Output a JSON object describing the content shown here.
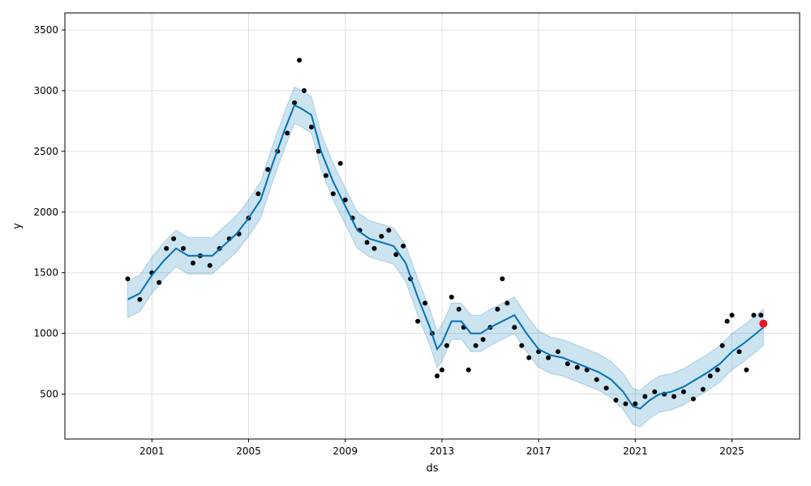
{
  "chart_data": {
    "type": "scatter",
    "title": "",
    "xlabel": "ds",
    "ylabel": "y",
    "xlim": [
      1997.4,
      2027.8
    ],
    "ylim": [
      130,
      3640
    ],
    "grid": true,
    "x_ticks": [
      2001,
      2005,
      2009,
      2013,
      2017,
      2021,
      2025
    ],
    "y_ticks": [
      500,
      1000,
      1500,
      2000,
      2500,
      3000,
      3500
    ],
    "colors": {
      "observed": "#000000",
      "forecast_line": "#0072B2",
      "uncertainty_band": "#0072B2",
      "highlight": "#e8191e",
      "grid": "#e0e0e0"
    },
    "series": [
      {
        "kind": "observed",
        "x": [
          2000.0,
          2000.5,
          2001.0,
          2001.3,
          2001.6,
          2001.9,
          2002.3,
          2002.7,
          2003.0,
          2003.4,
          2003.8,
          2004.2,
          2004.6,
          2005.0,
          2005.4,
          2005.8,
          2006.2,
          2006.6,
          2006.9,
          2007.1,
          2007.3,
          2007.6,
          2007.9,
          2008.2,
          2008.5,
          2008.8,
          2009.0,
          2009.3,
          2009.6,
          2009.9,
          2010.2,
          2010.5,
          2010.8,
          2011.1,
          2011.4,
          2011.7,
          2012.0,
          2012.3,
          2012.6,
          2012.8,
          2013.0,
          2013.2,
          2013.4,
          2013.7,
          2013.9,
          2014.1,
          2014.4,
          2014.7,
          2015.0,
          2015.3,
          2015.5,
          2015.7,
          2016.0,
          2016.3,
          2016.6,
          2017.0,
          2017.4,
          2017.8,
          2018.2,
          2018.6,
          2019.0,
          2019.4,
          2019.8,
          2020.2,
          2020.6,
          2021.0,
          2021.4,
          2021.8,
          2022.2,
          2022.6,
          2023.0,
          2023.4,
          2023.8,
          2024.1,
          2024.4,
          2024.6,
          2024.8,
          2025.0,
          2025.3,
          2025.6,
          2025.9,
          2026.2
        ],
        "y": [
          1450,
          1280,
          1500,
          1420,
          1700,
          1780,
          1700,
          1580,
          1640,
          1560,
          1700,
          1780,
          1820,
          1950,
          2150,
          2350,
          2500,
          2650,
          2900,
          3250,
          3000,
          2700,
          2500,
          2300,
          2150,
          2400,
          2100,
          1950,
          1850,
          1750,
          1700,
          1800,
          1850,
          1650,
          1720,
          1450,
          1100,
          1250,
          1000,
          650,
          700,
          900,
          1300,
          1200,
          1050,
          700,
          900,
          950,
          1050,
          1200,
          1450,
          1250,
          1050,
          900,
          800,
          850,
          800,
          850,
          750,
          720,
          700,
          620,
          550,
          450,
          420,
          420,
          480,
          520,
          500,
          480,
          520,
          460,
          540,
          650,
          700,
          900,
          1100,
          1150,
          850,
          700,
          1150,
          1150
        ]
      },
      {
        "kind": "forecast",
        "x": [
          2000.0,
          2000.5,
          2001.0,
          2001.5,
          2002.0,
          2002.5,
          2003.0,
          2003.5,
          2004.0,
          2004.5,
          2005.0,
          2005.5,
          2006.0,
          2006.5,
          2006.9,
          2007.2,
          2007.6,
          2008.0,
          2008.5,
          2009.0,
          2009.5,
          2010.0,
          2010.5,
          2011.0,
          2011.5,
          2012.0,
          2012.5,
          2012.8,
          2013.0,
          2013.4,
          2013.8,
          2014.2,
          2014.6,
          2015.0,
          2015.5,
          2016.0,
          2016.5,
          2017.0,
          2017.5,
          2018.0,
          2018.5,
          2019.0,
          2019.5,
          2020.0,
          2020.5,
          2020.9,
          2021.2,
          2021.6,
          2022.0,
          2022.5,
          2023.0,
          2023.5,
          2024.0,
          2024.5,
          2025.0,
          2025.5,
          2026.0,
          2026.3
        ],
        "y": [
          1280,
          1330,
          1480,
          1600,
          1700,
          1640,
          1640,
          1640,
          1730,
          1820,
          1950,
          2100,
          2400,
          2680,
          2880,
          2850,
          2800,
          2500,
          2250,
          2050,
          1850,
          1780,
          1750,
          1720,
          1580,
          1300,
          1050,
          870,
          920,
          1100,
          1100,
          1000,
          1000,
          1050,
          1100,
          1150,
          1000,
          870,
          820,
          800,
          760,
          720,
          680,
          620,
          520,
          400,
          380,
          450,
          500,
          520,
          560,
          620,
          680,
          750,
          850,
          920,
          1000,
          1050
        ]
      }
    ],
    "uncertainty_width": 150,
    "highlight_point": {
      "x": 2026.3,
      "y": 1080
    }
  }
}
